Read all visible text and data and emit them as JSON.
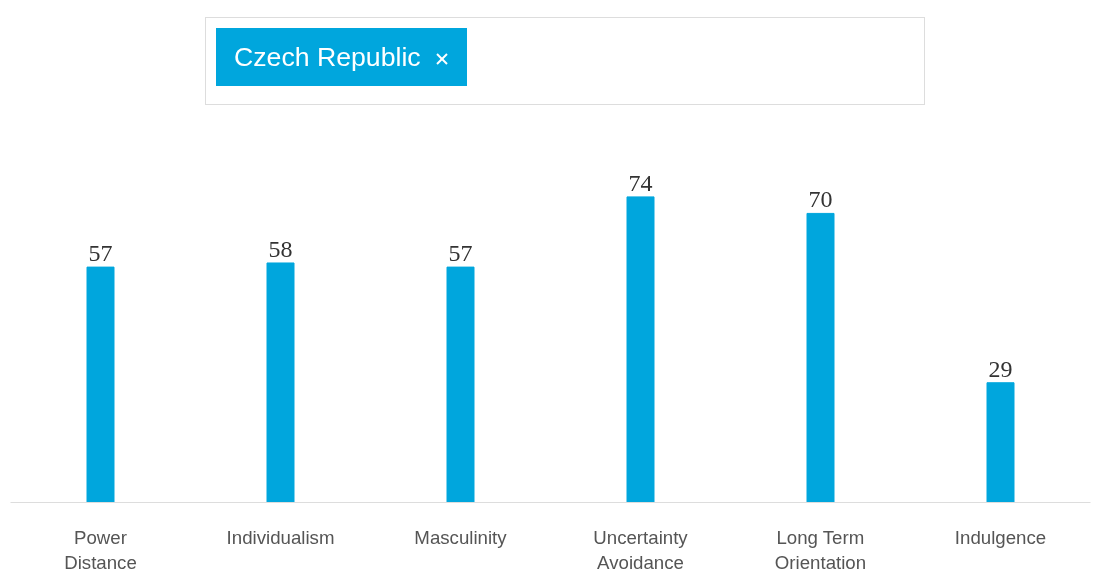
{
  "chart_data": {
    "type": "bar",
    "categories": [
      "Power Distance",
      "Individualism",
      "Masculinity",
      "Uncertainty Avoidance",
      "Long Term Orientation",
      "Indulgence"
    ],
    "series": [
      {
        "name": "Czech Republic",
        "color": "#00a6dd",
        "values": [
          57,
          58,
          57,
          74,
          70,
          29
        ]
      }
    ],
    "data_labels": true,
    "legend": "top",
    "grid": false
  }
}
